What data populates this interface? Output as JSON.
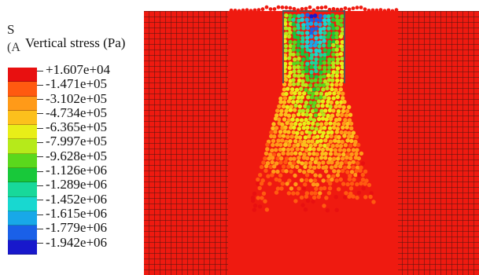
{
  "colors": {
    "soil": "#ef1a10",
    "mesh_line": "#4a1410",
    "background": "#ffffff",
    "contour": [
      "#e81010",
      "#ff5a10",
      "#ff9a18",
      "#fcc01c",
      "#e8ee18",
      "#b6ea1a",
      "#5ad81c",
      "#18c83a",
      "#18d89a",
      "#18d8d0",
      "#18a8e8",
      "#1a60e8",
      "#1818cc"
    ]
  },
  "legend": {
    "symbol": "S",
    "symbol_sub": "(A",
    "title": "Vertical stress (Pa)",
    "labels": [
      "+1.607e+04",
      "-1.471e+05",
      "-3.102e+05",
      "-4.734e+05",
      "-6.365e+05",
      "-7.997e+05",
      "-9.628e+05",
      "-1.126e+06",
      "-1.289e+06",
      "-1.452e+06",
      "-1.615e+06",
      "-1.779e+06",
      "-1.942e+06"
    ]
  }
}
